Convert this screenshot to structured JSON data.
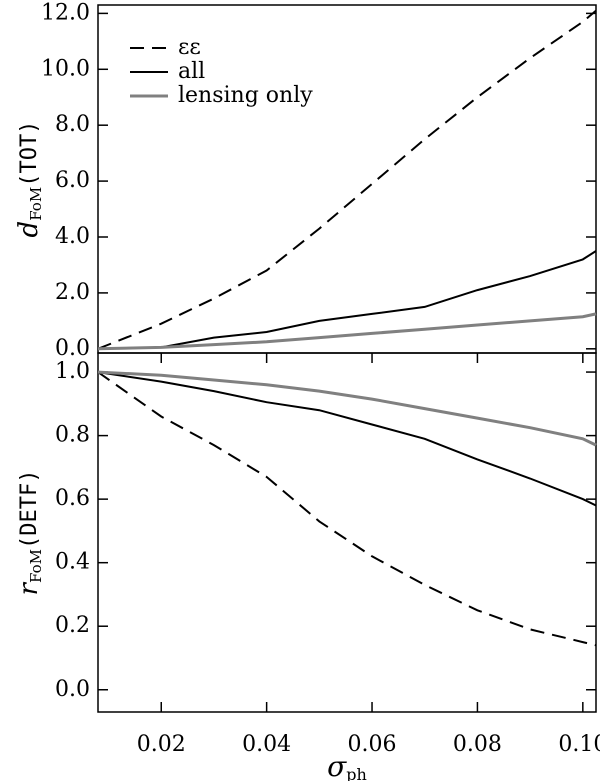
{
  "chart_data": [
    {
      "type": "line",
      "ylabel": {
        "symbol": "d",
        "subscript": "FoM",
        "text": "(TOT)"
      },
      "x": [
        0.008,
        0.02,
        0.03,
        0.04,
        0.05,
        0.06,
        0.07,
        0.08,
        0.09,
        0.1,
        0.1025
      ],
      "xlim": [
        0.008,
        0.1025
      ],
      "ylim": [
        -0.15,
        12.3
      ],
      "yticks": [
        {
          "value": 0,
          "label": "0.0"
        },
        {
          "value": 2,
          "label": "2.0"
        },
        {
          "value": 4,
          "label": "4.0"
        },
        {
          "value": 6,
          "label": "6.0"
        },
        {
          "value": 8,
          "label": "8.0"
        },
        {
          "value": 10,
          "label": "10.0"
        },
        {
          "value": 12,
          "label": "12.0"
        }
      ],
      "legend": "upper left",
      "series": [
        {
          "name": "εε",
          "color": "#000000",
          "dash": "dashed",
          "values": [
            0,
            0.9,
            1.8,
            2.8,
            4.3,
            5.9,
            7.5,
            9.0,
            10.4,
            11.7,
            12.1
          ]
        },
        {
          "name": "all",
          "color": "#000000",
          "dash": "solid",
          "values": [
            0,
            0.05,
            0.4,
            0.6,
            1.0,
            1.25,
            1.5,
            2.1,
            2.6,
            3.2,
            3.5
          ]
        },
        {
          "name": "lensing only",
          "color": "#808080",
          "dash": "solid",
          "values": [
            0,
            0.05,
            0.15,
            0.25,
            0.4,
            0.55,
            0.7,
            0.85,
            1.0,
            1.15,
            1.25
          ]
        }
      ]
    },
    {
      "type": "line",
      "ylabel": {
        "symbol": "r",
        "subscript": "FoM",
        "text": "(DETF)"
      },
      "xlabel": {
        "symbol": "σ",
        "subscript": "ph"
      },
      "x": [
        0.008,
        0.02,
        0.03,
        0.04,
        0.05,
        0.06,
        0.07,
        0.08,
        0.09,
        0.1,
        0.1025
      ],
      "xlim": [
        0.008,
        0.1025
      ],
      "xticks": [
        0.02,
        0.04,
        0.06,
        0.08,
        {
          "value": 0.1,
          "label": "0.10"
        }
      ],
      "ylim": [
        -0.07,
        1.06
      ],
      "yticks": [
        {
          "value": 0,
          "label": "0.0"
        },
        0.2,
        0.4,
        0.6,
        0.8,
        {
          "value": 1,
          "label": "1.0"
        }
      ],
      "series": [
        {
          "name": "εε",
          "color": "#000000",
          "dash": "dashed",
          "values": [
            1.0,
            0.86,
            0.77,
            0.67,
            0.53,
            0.42,
            0.33,
            0.25,
            0.19,
            0.15,
            0.14
          ]
        },
        {
          "name": "all",
          "color": "#000000",
          "dash": "solid",
          "values": [
            1.0,
            0.97,
            0.94,
            0.905,
            0.88,
            0.835,
            0.79,
            0.725,
            0.665,
            0.6,
            0.58
          ]
        },
        {
          "name": "lensing only",
          "color": "#808080",
          "dash": "solid",
          "values": [
            1.0,
            0.99,
            0.975,
            0.96,
            0.94,
            0.915,
            0.885,
            0.855,
            0.825,
            0.79,
            0.77
          ]
        }
      ]
    }
  ]
}
